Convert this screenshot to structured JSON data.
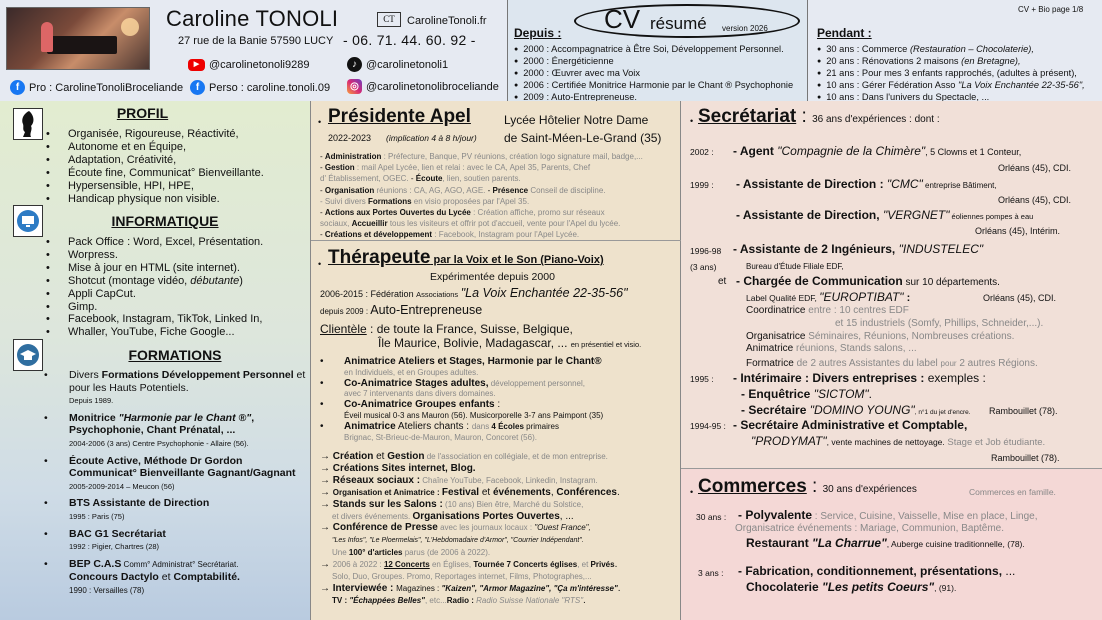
{
  "header": {
    "name": "Caroline TONOLI",
    "logo_text": "CT",
    "website": "CarolineTonoli.fr",
    "address": "27 rue de la Banie 57590 LUCY",
    "phone": "- 06. 71. 44. 60. 92 -",
    "youtube": "@carolinetonoli9289",
    "tiktok": "@carolinetonoli1",
    "facebook_pro": "Pro : CarolineTonoliBroceliande",
    "facebook_perso": "Perso : caroline.tonoli.09",
    "instagram": "@carolinetonolibroceliande",
    "depuis_title": "Depuis :",
    "cv": "CV",
    "resume": "résumé",
    "version": "version 2026",
    "depuis_items": [
      "2000 :  Accompagnatrice à Être Soi, Développement Personnel.",
      "2000 : Énergéticienne",
      "2000 : Œuvrer avec ma Voix",
      "2006 : Certifiée Monitrice Harmonie par le Chant ® Psychophonie",
      "2009 :  Auto-Entrepreneuse."
    ],
    "page_label": "CV + Bio page 1/8",
    "pendant_title": "Pendant :",
    "pendant_items": [
      {
        "a": "30 ans  :  Commerce ",
        "b": "(Restauration – Chocolaterie),"
      },
      {
        "a": "20 ans  :  Rénovations 2 maisons ",
        "b": "(en Bretagne),"
      },
      {
        "a": "21 ans  :  Pour mes 3 enfants rapprochés, (adultes à présent),",
        "b": ""
      },
      {
        "a": "10 ans  :  Gérer Fédération Asso ",
        "b": "\"La Voix Enchantée 22-35-56\","
      },
      {
        "a": "10 ans  :  Dans l'univers du Spectacle, ...",
        "b": ""
      }
    ]
  },
  "profil": {
    "title": "PROFIL",
    "items": [
      "Organisée, Rigoureuse, Réactivité,",
      "Autonome et en Équipe,",
      "Adaptation, Créativité,",
      "Écoute fine, Communicat° Bienveillante.",
      "Hypersensible, HPI, HPE,",
      "Handicap physique non visible."
    ]
  },
  "informatique": {
    "title": "INFORMATIQUE",
    "items": [
      "Pack Office : Word, Excel, Présentation.",
      "Worpress.",
      "Mise à jour en HTML (site internet).",
      "Shotcut (montage vidéo, ",
      "Appli CapCut.",
      "Gimp.",
      "Facebook, Instagram, TikTok, Linked In,",
      "Whaller, YouTube, Fiche Google..."
    ],
    "debutante": "débutante",
    "close_paren": ")"
  },
  "formations": {
    "title": "FORMATIONS",
    "items": [
      {
        "t1": "Divers ",
        "b1": "Formations Développement Personnel",
        "t2": " et pour les Hauts Potentiels.",
        "sub": "Depuis 1989."
      },
      {
        "b1": "Monitrice ",
        "bi": "\"Harmonie par le Chant ®\"",
        "b2": ", Psychophonie, Chant Prénatal, ...",
        "sub": "2004-2006 (3 ans) Centre Psychophonie - Allaire (56)."
      },
      {
        "b1": "Écoute Active, Méthode Dr Gordon Communicat° Bienveillante Gagnant/Gagnant",
        "sub": "2005-2009-2014 – Meucon  (56)"
      },
      {
        "b1": "BTS Assistante de Direction",
        "sub": "1995 : Paris (75)"
      },
      {
        "b1": "BAC G1 Secrétariat",
        "sub": "1992 : Pigier, Chartres (28)"
      },
      {
        "b1": "BEP C.A.S",
        "t2": " Comm° Administrat° Secrétariat.",
        "b3": "Concours Dactylo",
        "t3": " et ",
        "b4": "Comptabilité.",
        "sub": "1990 : Versailles (78)"
      }
    ]
  },
  "apel": {
    "title": "Présidente Apel",
    "school1": "Lycée Hôtelier Notre Dame",
    "dates": "2022-2023",
    "implication": "(implication 4 à 8 h/jour)",
    "school2": "de Saint-Méen-Le-Grand (35)",
    "lines": [
      {
        "b": "Administration",
        "g": " : Préfecture, Banque, PV réunions, création logo signature mail, badge,..."
      },
      {
        "b": "Gestion",
        "g": " : mail Apel Lycée, lien et relai : avec le CA, Apel 35, Parents, Chef"
      },
      {
        "b": "",
        "g": "   d' Établissement, OGEC.                                 ",
        "b2": "Écoute",
        "g2": ", lien, soutien parents."
      },
      {
        "b": "Organisation",
        "g": " réunions : CA, AG, AGO, AGE.    ",
        "b2": "Présence",
        "g2": " Conseil de discipline."
      },
      {
        "b": "",
        "g": "Suivi divers ",
        "b2": "Formations",
        "g2": " en visio proposées par l'Apel 35."
      },
      {
        "b": "Actions aux Portes Ouvertes du Lycée",
        "g": " : Création affiche, promo sur réseaux"
      },
      {
        "b": "",
        "g": "   sociaux, ",
        "b2": "Accueillir",
        "g2": " tous les visiteurs et offrir pot d'accueil, vente pour l'Apel du lycée."
      },
      {
        "b": "Créations et développement",
        "g": " : Facebook, Instagram pour l'Apel Lycée."
      }
    ]
  },
  "therapeute": {
    "title": "Thérapeute",
    "title2": " par la Voix et le Son (Piano-Voix)",
    "since": "Expérimentée depuis 2000",
    "fed_years": "2006-2015  :  Fédération ",
    "fed_assoc": "Associations",
    "fed_name": "\"La Voix Enchantée 22-35-56\"",
    "ae_since": "depuis 2009 : ",
    "ae": "Auto-Entrepreneuse",
    "clientele_label": "Clientèle",
    "clientele": " : de toute la France, Suisse, Belgique,",
    "clientele2": "Île Maurice, Bolivie, Madagascar, ... ",
    "clientele_small": "en présentiel et visio.",
    "items": [
      {
        "b": "Animatrice Ateliers et Stages, Harmonie par le Chant®",
        "g": "en Individuels, et en Groupes adultes."
      },
      {
        "b": "Co-Animatrice Stages adultes,",
        "g1": " développement personnel,",
        "g": "avec 7 intervenants dans divers domaines."
      },
      {
        "b": "Co-Animatrice Groupes enfants",
        "g1": " :",
        "g": "Éveil musical 0-3 ans Mauron (56).      Musicorporelle 3-7 ans Paimpont (35)"
      },
      {
        "b": "Animatrice",
        "t": " Ateliers chants : ",
        "g1": "dans ",
        "b2": "4 Écoles",
        "t2": " primaires",
        "g": "Brignac, St-Brieuc-de-Mauron, Mauron, Concoret (56)."
      }
    ],
    "arrows": [
      {
        "b": "Création",
        "t": " et ",
        "b2": "Gestion",
        "g": " de l'association en collégiale, et de mon entreprise."
      },
      {
        "b": "Créations Sites internet, Blog.",
        "g": ""
      },
      {
        "b": "Réseaux sociaux :",
        "g": " Chaîne YouTube, Facebook, Linkedin, Instagram."
      },
      {
        "b": "Organisation et Animatrice : ",
        "b2": "Festival",
        "t": " et ",
        "b3": "événements",
        "t2": ", ",
        "b4": "Conférences",
        "t3": "."
      },
      {
        "b": "Stands sur les Salons :",
        "g": " (10 ans) Bien être, Marché du Solstice,",
        "g2": "et divers événements. ",
        "b5": "Organisations Portes Ouvertes",
        "t5": ", ..."
      },
      {
        "b": "Conférence de Presse",
        "g": " avec les journaux locaux : ",
        "i1": "\"Ouest France\",",
        "i2": "\"Les Infos\", \"Le Ploermelais\", \"L'Hebdomadaire d'Armor\", \"Courrier Indépendant\".",
        "g3": "Une ",
        "b6": "100° d'articles",
        "g4": " parus (de 2006 à 2022)."
      },
      {
        "g0": "2006 à 2022 : ",
        "b": "12 Concerts",
        "g": " en Églises, ",
        "b2": "Tournée 7 Concerts églises",
        "g1": ", et ",
        "b3": "Privés",
        "t": ".",
        "g2": "Solo, Duo, Groupes. Promo, Reportages internet, Films, Photographes,..."
      },
      {
        "b": "Interviewée : ",
        "t": "Magazines : ",
        "bi": "\"Kaizen\", \"Armor Magazine\", \"Ça m'intéresse\"",
        "t2": ".",
        "b2": "TV : ",
        "bi2": "\"Échappées Belles\"",
        "g": ", etc...",
        "b3": "Radio : ",
        "gi": "Radio Suisse Nationale \"RTS\"",
        "t3": "."
      }
    ]
  },
  "secretariat": {
    "title": "Secrétariat",
    "colon": " : ",
    "subtitle": "36 ans d'expériences : dont :",
    "rows": [
      {
        "year": "2002 :",
        "main": "- Agent ",
        "quote": "\"Compagnie de la Chimère\"",
        "tail": ", 5 Clowns et 1 Conteur,",
        "loc": "Orléans (45), CDI."
      },
      {
        "year": "1999 :",
        "main": "- Assistante de Direction : ",
        "quote": "\"CMC\"",
        "tail": " entreprise Bâtiment,",
        "loc": "Orléans (45), CDI."
      },
      {
        "year": "",
        "main": "- Assistante de Direction, ",
        "quote": "\"VERGNET\"",
        "tail": " éoliennes pompes à eau",
        "loc": "Orléans (45), Intérim."
      },
      {
        "year": "1996-98",
        "year2": "(3 ans)",
        "main": "- Assistante de 2 Ingénieurs, ",
        "quote": "\"INDUSTELEC\"",
        "tail": "",
        "sub": "Bureau d'Étude Filiale EDF,"
      },
      {
        "year": "et",
        "main": "- Chargée de Communication",
        "tail": " sur 10 départements."
      }
    ],
    "label": "Label Qualité EDF, ",
    "europtibat": "\"EUROPTIBAT\"",
    "europtibat_colon": " :",
    "europtibat_loc": "Orléans (45), CDI.",
    "coord1": "Coordinatrice ",
    "coord1_g": "entre : 10 centres EDF",
    "coord2_g": "et 15 industriels (Somfy, Phillips, Schneider,...).",
    "org": "Organisatrice ",
    "org_g": "Séminaires, Réunions, Nombreuses créations.",
    "anim": "Animatrice ",
    "anim_g": "réunions, Stands salons, ...",
    "formatrice": "Formatrice ",
    "formatrice_g": "de 2 autres Assistantes du label ",
    "formatrice_g2": "pour",
    "formatrice_g3": " 2 autres Régions.",
    "y1995": "1995 :",
    "interimaire": "- Intérimaire : Divers entreprises :",
    "interimaire_t": " exemples :",
    "enquetrice": "- Enquêtrice ",
    "sictom": "\"SICTOM\"",
    "sictom_end": ".",
    "secretaire": "- Secrétaire ",
    "domino": "\"DOMINO YOUNG\"",
    "domino_small": ", n°1 du jet d'encre.",
    "domino_loc": "Rambouillet (78).",
    "y1994": "1994-95 :",
    "sac": "- Secrétaire Administrative et Comptable,",
    "prodymat": "\"PRODYMAT\"",
    "prodymat_t": ", vente machines de nettoyage.",
    "prodymat_g": " Stage et Job étudiante.",
    "prodymat_loc": "Rambouillet (78)."
  },
  "commerces": {
    "title": "Commerces",
    "colon": " : ",
    "subtitle": "30 ans d'expériences",
    "note": "Commerces en famille.",
    "y30": "30 ans :",
    "poly": "- Polyvalente",
    "poly_g": " : Service, Cuisine, Vaisselle, Mise en place, Linge,",
    "poly_g2": "Organisatrice événements : Mariage, Communion, Baptême.",
    "resto": "Restaurant ",
    "charrue": "\"La Charrue\"",
    "charrue_t": ", Auberge cuisine traditionnelle, (78).",
    "y3": "3 ans :",
    "fab": "- Fabrication, conditionnement, présentations,",
    "fab_t": " ...",
    "choco": "Chocolaterie ",
    "coeurs": "\"Les petits Coeurs\"",
    "coeurs_t": ", (91)."
  }
}
